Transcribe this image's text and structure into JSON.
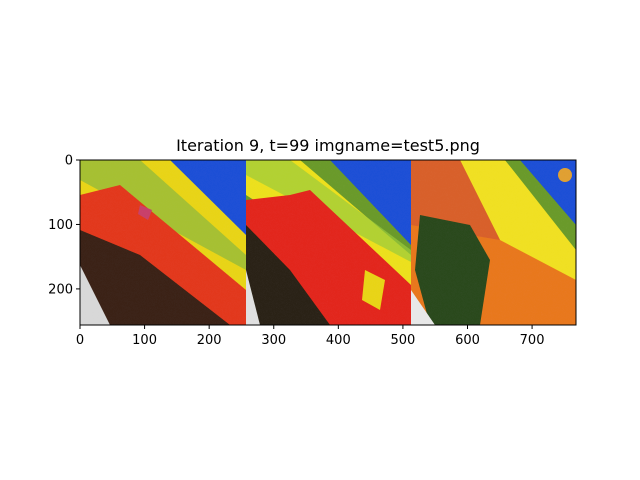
{
  "chart_data": {
    "type": "image",
    "title": "Iteration 9, t=99 imgname=test5.png",
    "xlabel": "",
    "ylabel": "",
    "xlim": [
      0,
      768
    ],
    "ylim": [
      256,
      0
    ],
    "x_ticks": [
      0,
      100,
      200,
      300,
      400,
      500,
      600,
      700
    ],
    "y_ticks": [
      0,
      100,
      200
    ],
    "grid": false,
    "panels": [
      {
        "name": "panel-1",
        "x_range": [
          0,
          256
        ]
      },
      {
        "name": "panel-2",
        "x_range": [
          256,
          512
        ]
      },
      {
        "name": "panel-3",
        "x_range": [
          512,
          768
        ]
      }
    ]
  }
}
